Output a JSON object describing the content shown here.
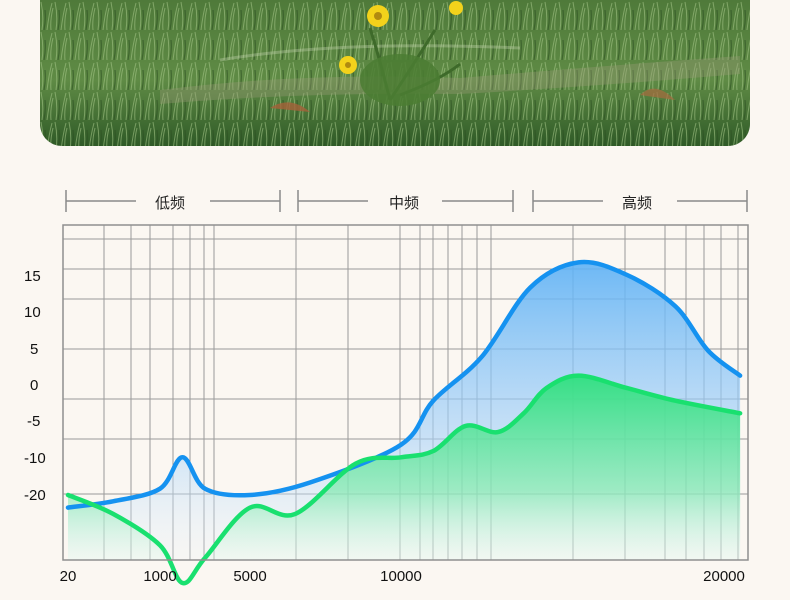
{
  "photo": {
    "subject": "grass-with-yellow-flowers"
  },
  "bands": [
    {
      "label": "低频"
    },
    {
      "label": "中频"
    },
    {
      "label": "高频"
    }
  ],
  "colors": {
    "blue_curve": "#1592f0",
    "green_curve": "#19e06f",
    "grid": "#9a9a9a",
    "background": "#fbf7f2"
  },
  "chart_data": {
    "type": "area",
    "y_tick_labels": [
      "15",
      "10",
      "5",
      "0",
      "-5",
      "-10",
      "-20"
    ],
    "x_tick_labels": [
      "20",
      "1000",
      "5000",
      "10000",
      "20000"
    ],
    "ylim": [
      -30,
      20
    ],
    "series": [
      {
        "values_x": [
          20,
          500,
          1000,
          2000,
          3000,
          5000,
          7000,
          10000,
          11000,
          12500,
          14000,
          15500,
          17000,
          18500,
          19500,
          20500
        ],
        "values_y": [
          -22,
          -21,
          -19,
          -14,
          -19,
          -20,
          -18,
          -12,
          -5,
          2,
          13,
          17,
          15,
          10,
          3,
          -1
        ]
      },
      {
        "values_x": [
          20,
          500,
          1000,
          2000,
          3000,
          5000,
          6500,
          8500,
          10000,
          11000,
          12000,
          13000,
          13800,
          14500,
          15500,
          17000,
          18500,
          20500
        ],
        "values_y": [
          -20,
          -23,
          -28,
          -34,
          -30,
          -22,
          -23,
          -15,
          -14,
          -13,
          -9,
          -10,
          -7,
          -3,
          -1,
          -3,
          -5,
          -7
        ]
      }
    ]
  }
}
